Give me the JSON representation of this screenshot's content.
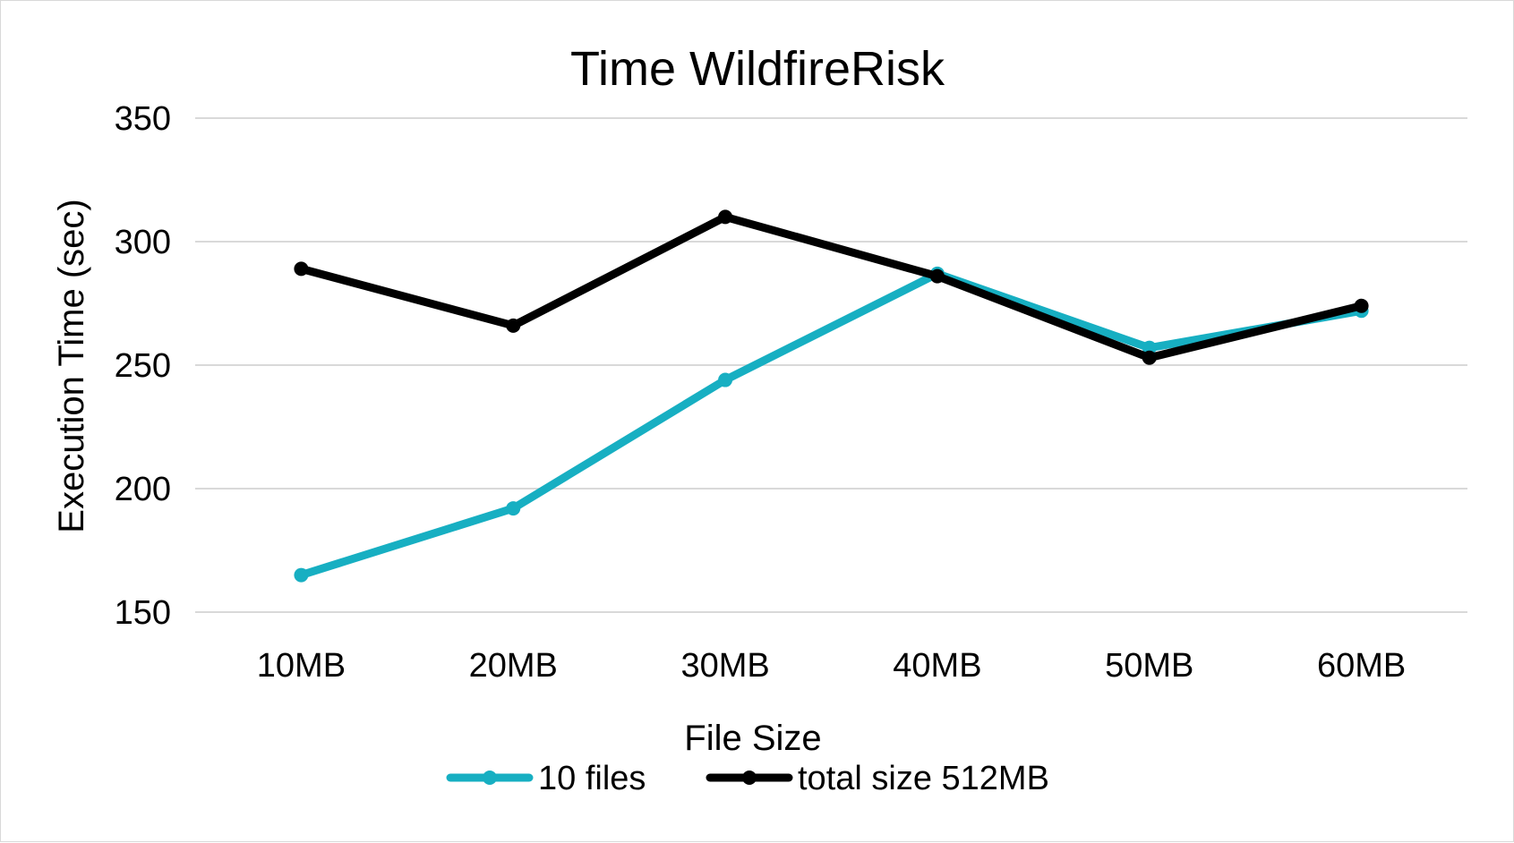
{
  "chart_data": {
    "type": "line",
    "title": "Time WildfireRisk",
    "xlabel": "File Size",
    "ylabel": "Execution Time (sec)",
    "categories": [
      "10MB",
      "20MB",
      "30MB",
      "40MB",
      "50MB",
      "60MB"
    ],
    "y_ticks": [
      150,
      200,
      250,
      300,
      350
    ],
    "ylim": [
      150,
      350
    ],
    "grid": true,
    "legend_position": "bottom",
    "series": [
      {
        "name": "10 files",
        "color": "#17AFC2",
        "values": [
          165,
          192,
          244,
          287,
          257,
          272
        ]
      },
      {
        "name": "total size 512MB",
        "color": "#000000",
        "values": [
          289,
          266,
          310,
          286,
          253,
          274
        ]
      }
    ]
  }
}
